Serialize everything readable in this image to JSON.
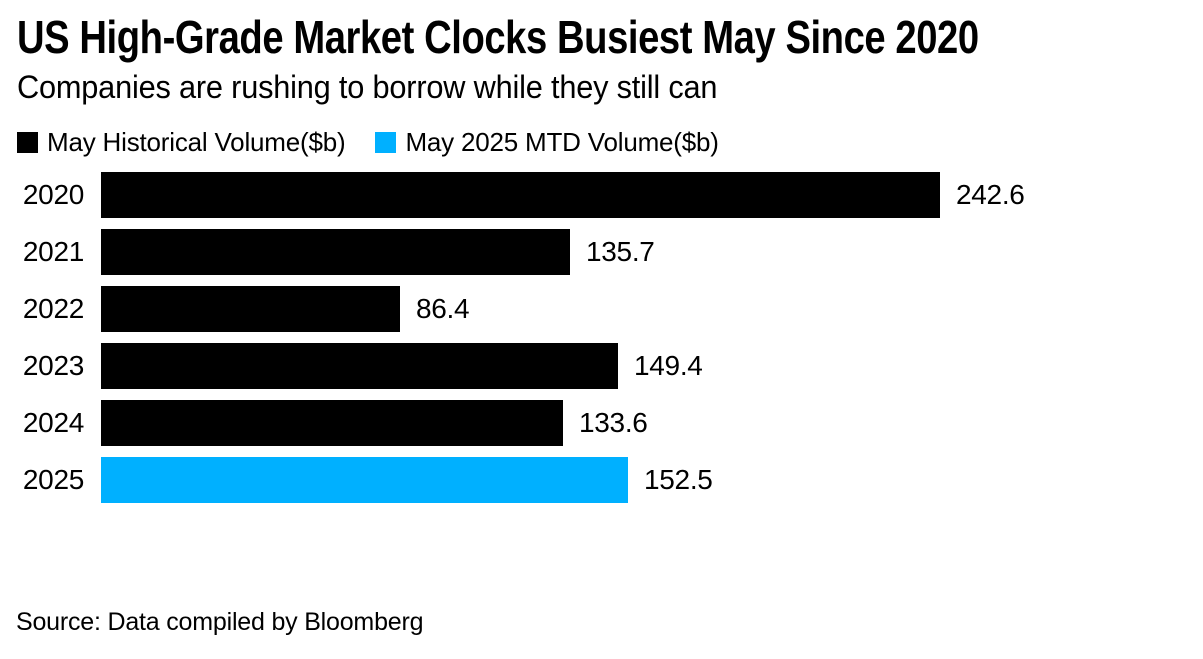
{
  "page": {
    "title": "US High-Grade Market Clocks Busiest May Since 2020",
    "subtitle": "Companies are rushing to borrow while they still can",
    "source": "Source: Data compiled by Bloomberg",
    "background_color": "#ffffff",
    "text_color": "#000000"
  },
  "chart_data": {
    "type": "bar",
    "orientation": "horizontal",
    "title": "US High-Grade Market Clocks Busiest May Since 2020",
    "subtitle": "Companies are rushing to borrow while they still can",
    "source": "Source: Data compiled by Bloomberg",
    "categories": [
      "2020",
      "2021",
      "2022",
      "2023",
      "2024",
      "2025"
    ],
    "series": [
      {
        "name": "May Historical Volume($b)",
        "color": "#000000",
        "categories": [
          "2020",
          "2021",
          "2022",
          "2023",
          "2024"
        ],
        "values": [
          242.6,
          135.7,
          86.4,
          149.4,
          133.6
        ]
      },
      {
        "name": "May 2025 MTD Volume($b)",
        "color": "#00B0FF",
        "categories": [
          "2025"
        ],
        "values": [
          152.5
        ]
      }
    ],
    "bars": [
      {
        "category": "2020",
        "value": 242.6,
        "label": "242.6",
        "series": 0
      },
      {
        "category": "2021",
        "value": 135.7,
        "label": "135.7",
        "series": 0
      },
      {
        "category": "2022",
        "value": 86.4,
        "label": "86.4",
        "series": 0
      },
      {
        "category": "2023",
        "value": 149.4,
        "label": "149.4",
        "series": 0
      },
      {
        "category": "2024",
        "value": 133.6,
        "label": "133.6",
        "series": 0
      },
      {
        "category": "2025",
        "value": 152.5,
        "label": "152.5",
        "series": 1
      }
    ],
    "value_labels_shown": true,
    "xlim": [
      0,
      250
    ],
    "grid": false,
    "axis_lines": false,
    "legend_position": "top-left"
  }
}
